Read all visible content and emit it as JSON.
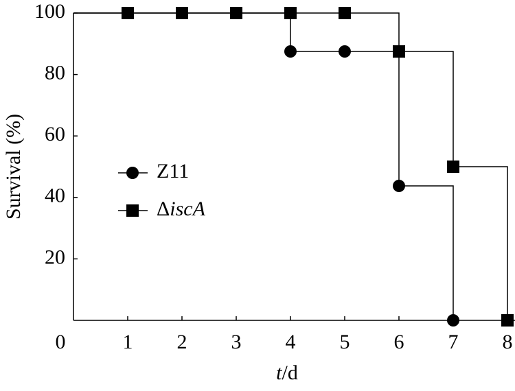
{
  "chart_data": {
    "type": "step",
    "x_label": "t/d",
    "y_label": "Survival (%)",
    "xlim": [
      0,
      8.15
    ],
    "ylim": [
      0,
      100
    ],
    "xticks": [
      0,
      1,
      2,
      3,
      4,
      5,
      6,
      7,
      8
    ],
    "yticks": [
      20,
      40,
      60,
      80,
      100
    ],
    "legend": "center-left",
    "series": [
      {
        "name": "Z11",
        "color": "#000000",
        "marker": "circle",
        "x": [
          1,
          2,
          3,
          4,
          5,
          6,
          7
        ],
        "values": [
          100,
          100,
          100,
          87.5,
          87.5,
          43.75,
          0
        ]
      },
      {
        "name": "ΔiscA",
        "color": "#000000",
        "marker": "square",
        "x": [
          1,
          2,
          3,
          4,
          5,
          6,
          7,
          8
        ],
        "values": [
          100,
          100,
          100,
          100,
          100,
          87.5,
          50,
          0
        ]
      }
    ]
  }
}
